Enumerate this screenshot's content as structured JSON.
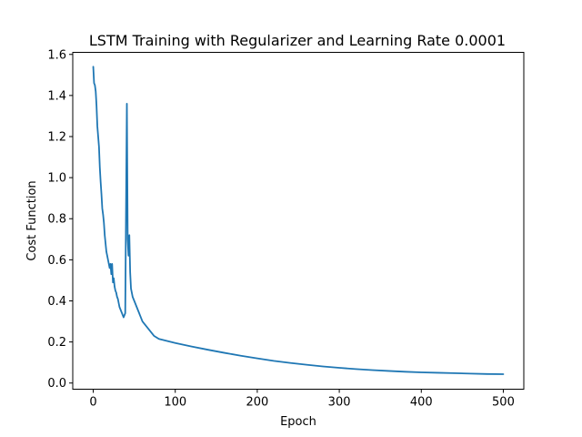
{
  "chart_data": {
    "type": "line",
    "title": "LSTM Training with Regularizer and Learning Rate 0.0001",
    "xlabel": "Epoch",
    "ylabel": "Cost Function",
    "xlim": [
      -25,
      525
    ],
    "ylim": [
      -0.03,
      1.61
    ],
    "xticks": [
      0,
      100,
      200,
      300,
      400,
      500
    ],
    "xtick_labels": [
      "0",
      "100",
      "200",
      "300",
      "400",
      "500"
    ],
    "yticks": [
      0.0,
      0.2,
      0.4,
      0.6,
      0.8,
      1.0,
      1.2,
      1.4,
      1.6
    ],
    "ytick_labels": [
      "0.0",
      "0.2",
      "0.4",
      "0.6",
      "0.8",
      "1.0",
      "1.2",
      "1.4",
      "1.6"
    ],
    "grid": false,
    "colors": {
      "line": "#1f77b4",
      "frame": "#000000"
    },
    "series": [
      {
        "x": [
          0,
          1,
          2,
          3,
          4,
          5,
          6,
          7,
          8,
          9,
          10,
          11,
          12,
          13,
          14,
          15,
          16,
          17,
          18,
          19,
          20,
          21,
          22,
          23,
          24,
          25,
          26,
          27,
          28,
          29,
          30,
          31,
          32,
          33,
          34,
          35,
          36,
          37,
          38,
          39,
          40,
          41,
          42,
          43,
          44,
          45,
          46,
          47,
          48,
          49,
          50,
          51,
          52,
          53,
          54,
          55,
          56,
          57,
          58,
          59,
          60,
          62,
          64,
          66,
          68,
          70,
          72,
          74,
          76,
          78,
          80,
          90,
          100,
          120,
          140,
          160,
          180,
          200,
          220,
          240,
          260,
          280,
          300,
          320,
          340,
          360,
          380,
          400,
          420,
          440,
          460,
          480,
          500
        ],
        "y": [
          1.54,
          1.46,
          1.45,
          1.42,
          1.35,
          1.25,
          1.2,
          1.15,
          1.05,
          0.98,
          0.92,
          0.85,
          0.82,
          0.78,
          0.72,
          0.68,
          0.64,
          0.62,
          0.6,
          0.58,
          0.56,
          0.58,
          0.53,
          0.58,
          0.49,
          0.51,
          0.47,
          0.45,
          0.44,
          0.42,
          0.41,
          0.39,
          0.37,
          0.36,
          0.35,
          0.34,
          0.33,
          0.32,
          0.33,
          0.34,
          0.86,
          1.36,
          0.7,
          0.62,
          0.72,
          0.54,
          0.46,
          0.44,
          0.42,
          0.41,
          0.4,
          0.39,
          0.38,
          0.37,
          0.36,
          0.35,
          0.34,
          0.33,
          0.32,
          0.31,
          0.3,
          0.29,
          0.28,
          0.27,
          0.26,
          0.25,
          0.24,
          0.23,
          0.225,
          0.22,
          0.215,
          0.205,
          0.195,
          0.178,
          0.162,
          0.147,
          0.133,
          0.12,
          0.108,
          0.098,
          0.089,
          0.081,
          0.074,
          0.068,
          0.063,
          0.059,
          0.055,
          0.052,
          0.05,
          0.048,
          0.046,
          0.044,
          0.043
        ]
      }
    ]
  }
}
